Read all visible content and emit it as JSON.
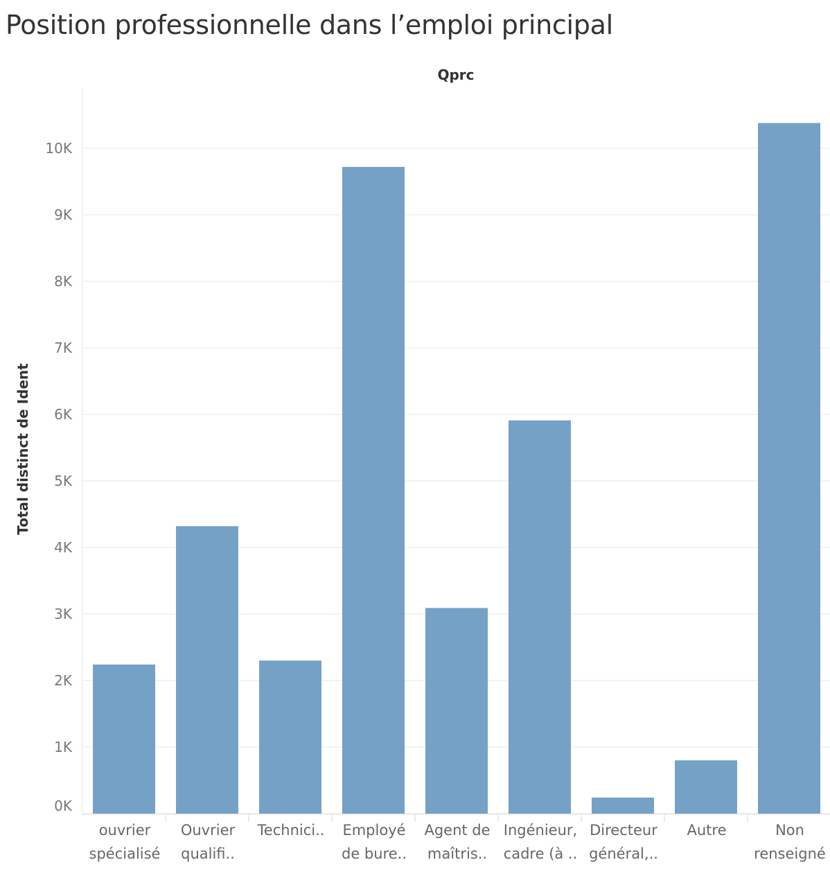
{
  "title": "Position professionnelle dans l’emploi principal",
  "colors": {
    "bar": "#75A1C6",
    "grid": "#ececec",
    "axis": "#d8d8d8"
  },
  "chart_data": {
    "type": "bar",
    "title": "Position professionnelle dans l’emploi principal",
    "column_header": "Qprc",
    "ylabel": "Total distinct de Ident",
    "xlabel": "",
    "ylim": [
      0,
      10800
    ],
    "yticks": [
      0,
      1000,
      2000,
      3000,
      4000,
      5000,
      6000,
      7000,
      8000,
      9000,
      10000
    ],
    "ytick_labels": [
      "0K",
      "1K",
      "2K",
      "3K",
      "4K",
      "5K",
      "6K",
      "7K",
      "8K",
      "9K",
      "10K"
    ],
    "grid": true,
    "categories": [
      [
        "ouvrier",
        "spécialisé"
      ],
      [
        "Ouvrier",
        "qualifi.."
      ],
      [
        "Technici.."
      ],
      [
        "Employé",
        "de bure.."
      ],
      [
        "Agent de",
        "maîtris.."
      ],
      [
        "Ingénieur,",
        "cadre (à .."
      ],
      [
        "Directeur",
        "général,.."
      ],
      [
        "Autre"
      ],
      [
        "Non",
        "renseigné"
      ]
    ],
    "values": [
      2240,
      4320,
      2300,
      9720,
      3090,
      5910,
      240,
      800,
      10380
    ]
  }
}
